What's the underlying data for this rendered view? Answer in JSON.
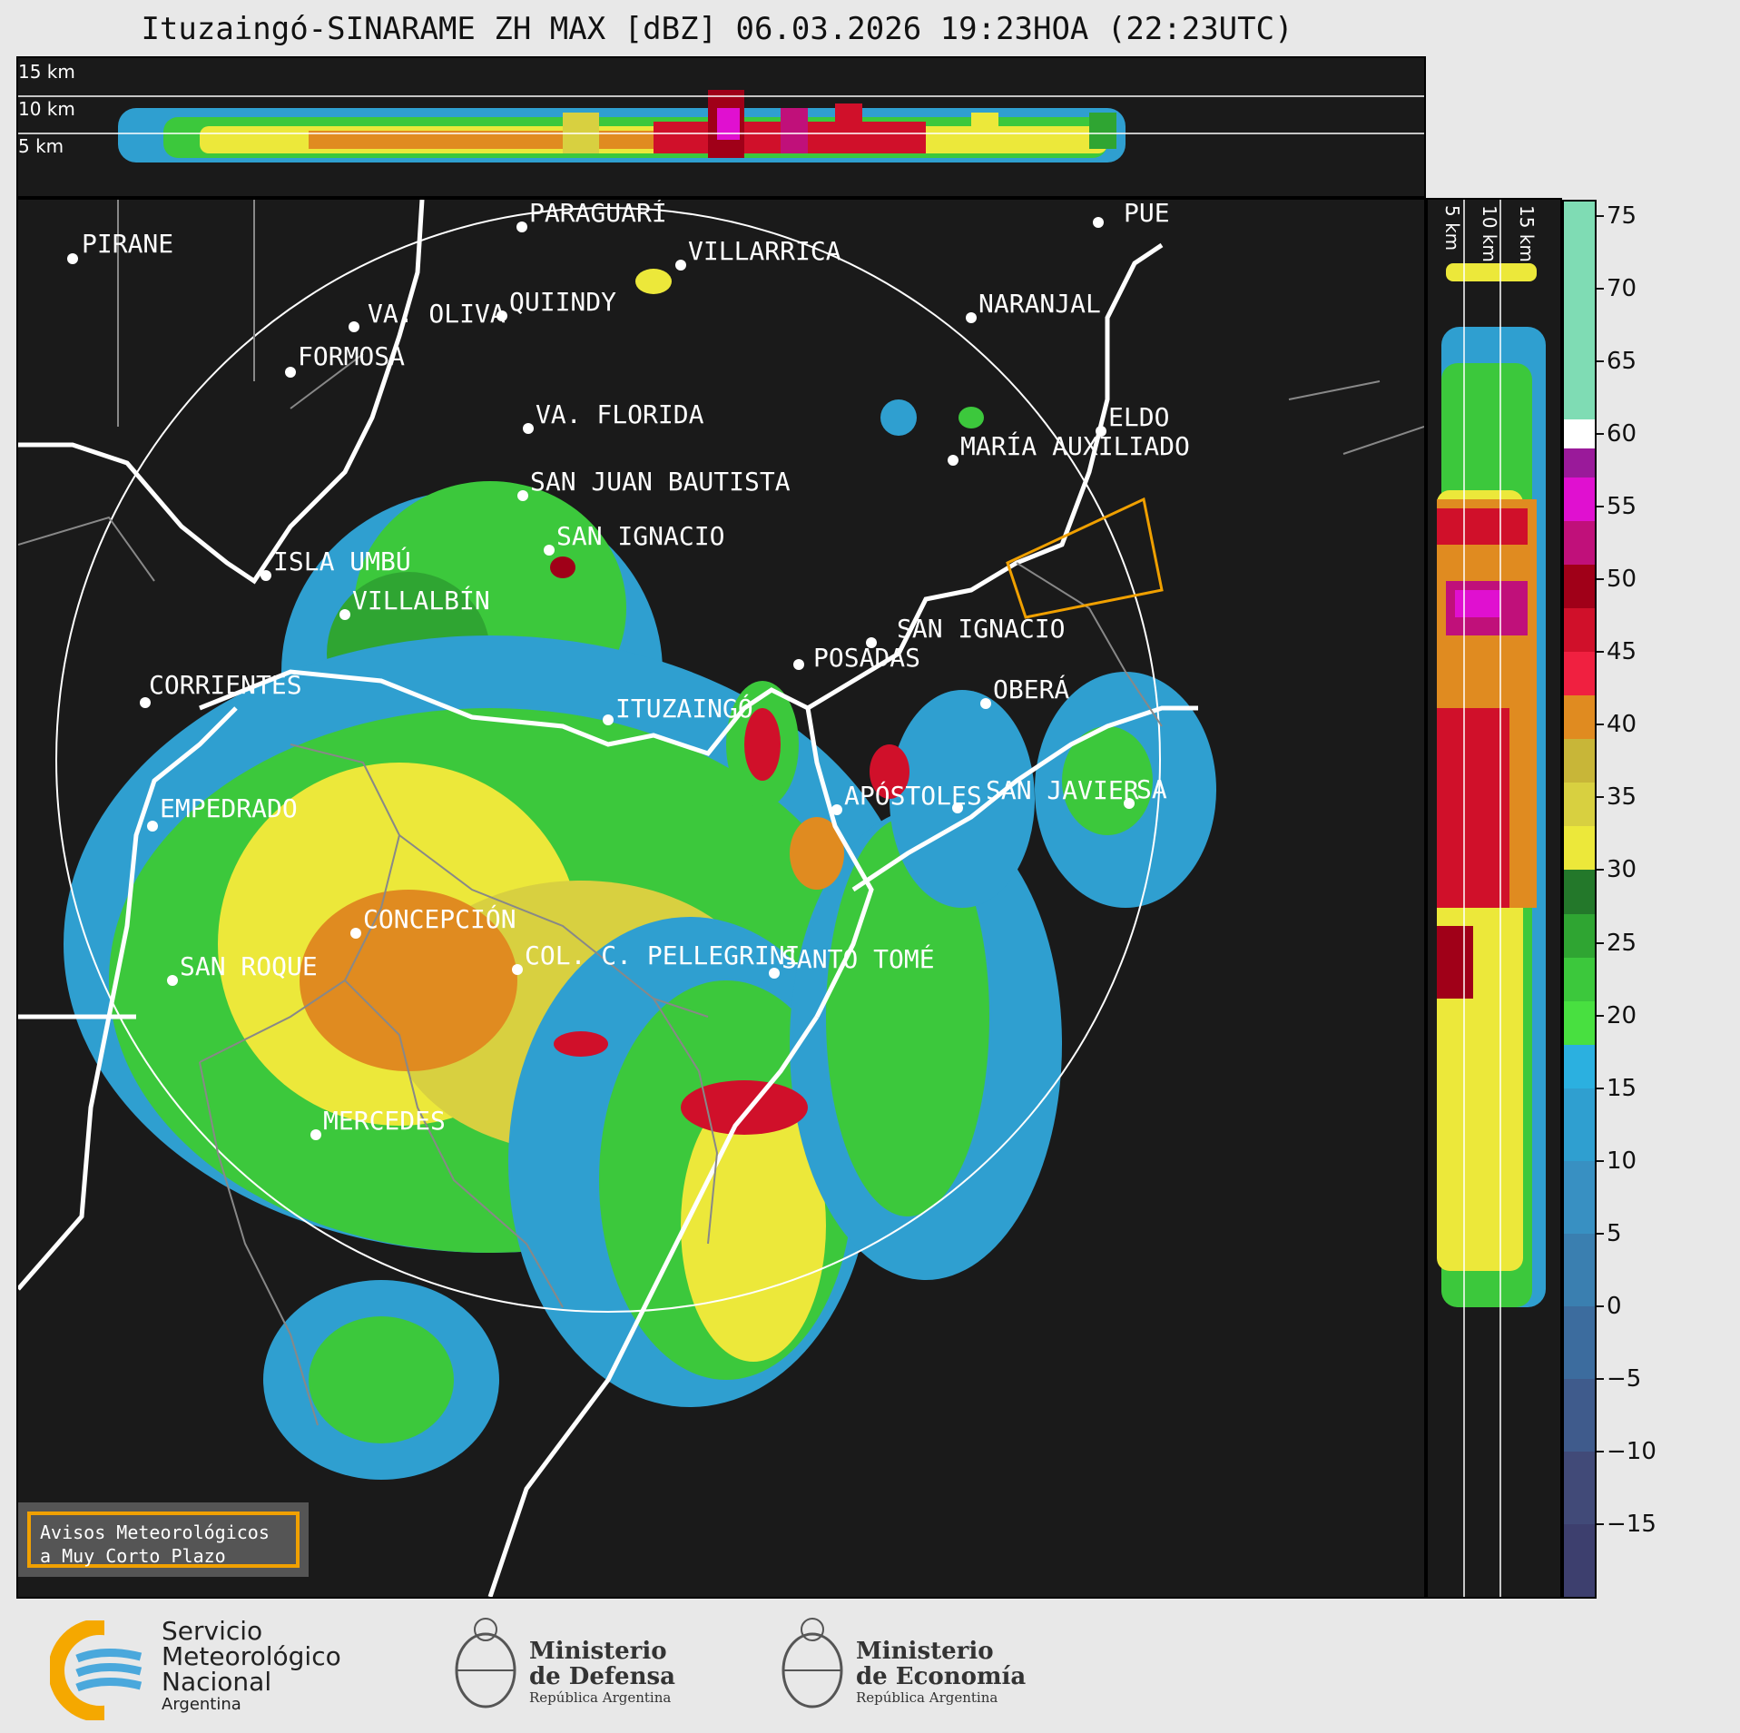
{
  "title": "Ituzaingó-SINARAME ZH MAX [dBZ] 06.03.2026 19:23HOA (22:23UTC)",
  "top_section": {
    "km_labels": [
      "15 km",
      "10 km",
      "5 km"
    ]
  },
  "right_section": {
    "km_labels": [
      "5 km",
      "10 km",
      "15 km"
    ]
  },
  "map": {
    "center_label": "ITUZAINGÓ",
    "cities": [
      {
        "id": "pirane",
        "label": "PIRANE"
      },
      {
        "id": "paraguari",
        "label": "PARAGUARÍ"
      },
      {
        "id": "villarrica",
        "label": "VILLARRICA"
      },
      {
        "id": "quiindy",
        "label": "QUIINDY"
      },
      {
        "id": "va-oliva",
        "label": "VA. OLIVA"
      },
      {
        "id": "formosa",
        "label": "FORMOSA"
      },
      {
        "id": "naranjal",
        "label": "NARANJAL"
      },
      {
        "id": "pue",
        "label": "PUE"
      },
      {
        "id": "va-florida",
        "label": "VA. FLORIDA"
      },
      {
        "id": "eldo",
        "label": "ELDO"
      },
      {
        "id": "maria-auxiliadora",
        "label": "MARÍA AUXILIADO"
      },
      {
        "id": "san-juan-bautista",
        "label": "SAN JUAN BAUTISTA"
      },
      {
        "id": "san-ignacio-py",
        "label": "SAN IGNACIO"
      },
      {
        "id": "isla-umbu",
        "label": "ISLA UMBÚ"
      },
      {
        "id": "villalbin",
        "label": "VILLALBÍN"
      },
      {
        "id": "san-ignacio-ar",
        "label": "SAN IGNACIO"
      },
      {
        "id": "posadas",
        "label": "POSADAS"
      },
      {
        "id": "corrientes",
        "label": "CORRIENTES"
      },
      {
        "id": "obera",
        "label": "OBERÁ"
      },
      {
        "id": "empedrado",
        "label": "EMPEDRADO"
      },
      {
        "id": "apostoles",
        "label": "APÓSTOLES"
      },
      {
        "id": "san-javier",
        "label": "SAN JAVIER"
      },
      {
        "id": "sa",
        "label": "SA"
      },
      {
        "id": "concepcion",
        "label": "CONCEPCIÓN"
      },
      {
        "id": "san-roque",
        "label": "SAN ROQUE"
      },
      {
        "id": "col-pellegrini",
        "label": "COL. C. PELLEGRINI"
      },
      {
        "id": "santo-tome",
        "label": "SANTO TOMÉ"
      },
      {
        "id": "mercedes",
        "label": "MERCEDES"
      }
    ]
  },
  "colorbar": {
    "ticks": [
      "75",
      "70",
      "65",
      "60",
      "55",
      "50",
      "45",
      "40",
      "35",
      "30",
      "25",
      "20",
      "15",
      "10",
      "5",
      "0",
      "−5",
      "−10",
      "−15"
    ],
    "min": -20,
    "max": 76,
    "stops": [
      {
        "from": -20,
        "to": -15,
        "color": "#3d3f6e"
      },
      {
        "from": -15,
        "to": -10,
        "color": "#414a78"
      },
      {
        "from": -10,
        "to": -5,
        "color": "#3f5b8c"
      },
      {
        "from": -5,
        "to": 0,
        "color": "#3c6c9e"
      },
      {
        "from": 0,
        "to": 5,
        "color": "#3a7fb0"
      },
      {
        "from": 5,
        "to": 10,
        "color": "#3890c2"
      },
      {
        "from": 10,
        "to": 15,
        "color": "#2f9fd0"
      },
      {
        "from": 15,
        "to": 18,
        "color": "#2bb0e0"
      },
      {
        "from": 18,
        "to": 21,
        "color": "#48e040"
      },
      {
        "from": 21,
        "to": 24,
        "color": "#3cc83c"
      },
      {
        "from": 24,
        "to": 27,
        "color": "#2fa532"
      },
      {
        "from": 27,
        "to": 30,
        "color": "#23782a"
      },
      {
        "from": 30,
        "to": 33,
        "color": "#ece83a"
      },
      {
        "from": 33,
        "to": 36,
        "color": "#d8d040"
      },
      {
        "from": 36,
        "to": 39,
        "color": "#c8b638"
      },
      {
        "from": 39,
        "to": 42,
        "color": "#e08b20"
      },
      {
        "from": 42,
        "to": 45,
        "color": "#f02040"
      },
      {
        "from": 45,
        "to": 48,
        "color": "#d0102a"
      },
      {
        "from": 48,
        "to": 51,
        "color": "#a00018"
      },
      {
        "from": 51,
        "to": 54,
        "color": "#c0107a"
      },
      {
        "from": 54,
        "to": 57,
        "color": "#e010d0"
      },
      {
        "from": 57,
        "to": 59,
        "color": "#9a1a9a"
      },
      {
        "from": 59,
        "to": 61,
        "color": "#ffffff"
      },
      {
        "from": 61,
        "to": 76,
        "color": "#7fdcb4"
      }
    ]
  },
  "notice": {
    "line1": "Avisos Meteorológicos",
    "line2": "a Muy Corto Plazo"
  },
  "footer": {
    "smn": {
      "line1": "Servicio",
      "line2": "Meteorológico",
      "line3": "Nacional",
      "line4": "Argentina"
    },
    "defensa": {
      "line1": "Ministerio",
      "line2": "de Defensa",
      "line3": "República Argentina"
    },
    "economia": {
      "line1": "Ministerio",
      "line2": "de Economía",
      "line3": "República Argentina"
    }
  }
}
